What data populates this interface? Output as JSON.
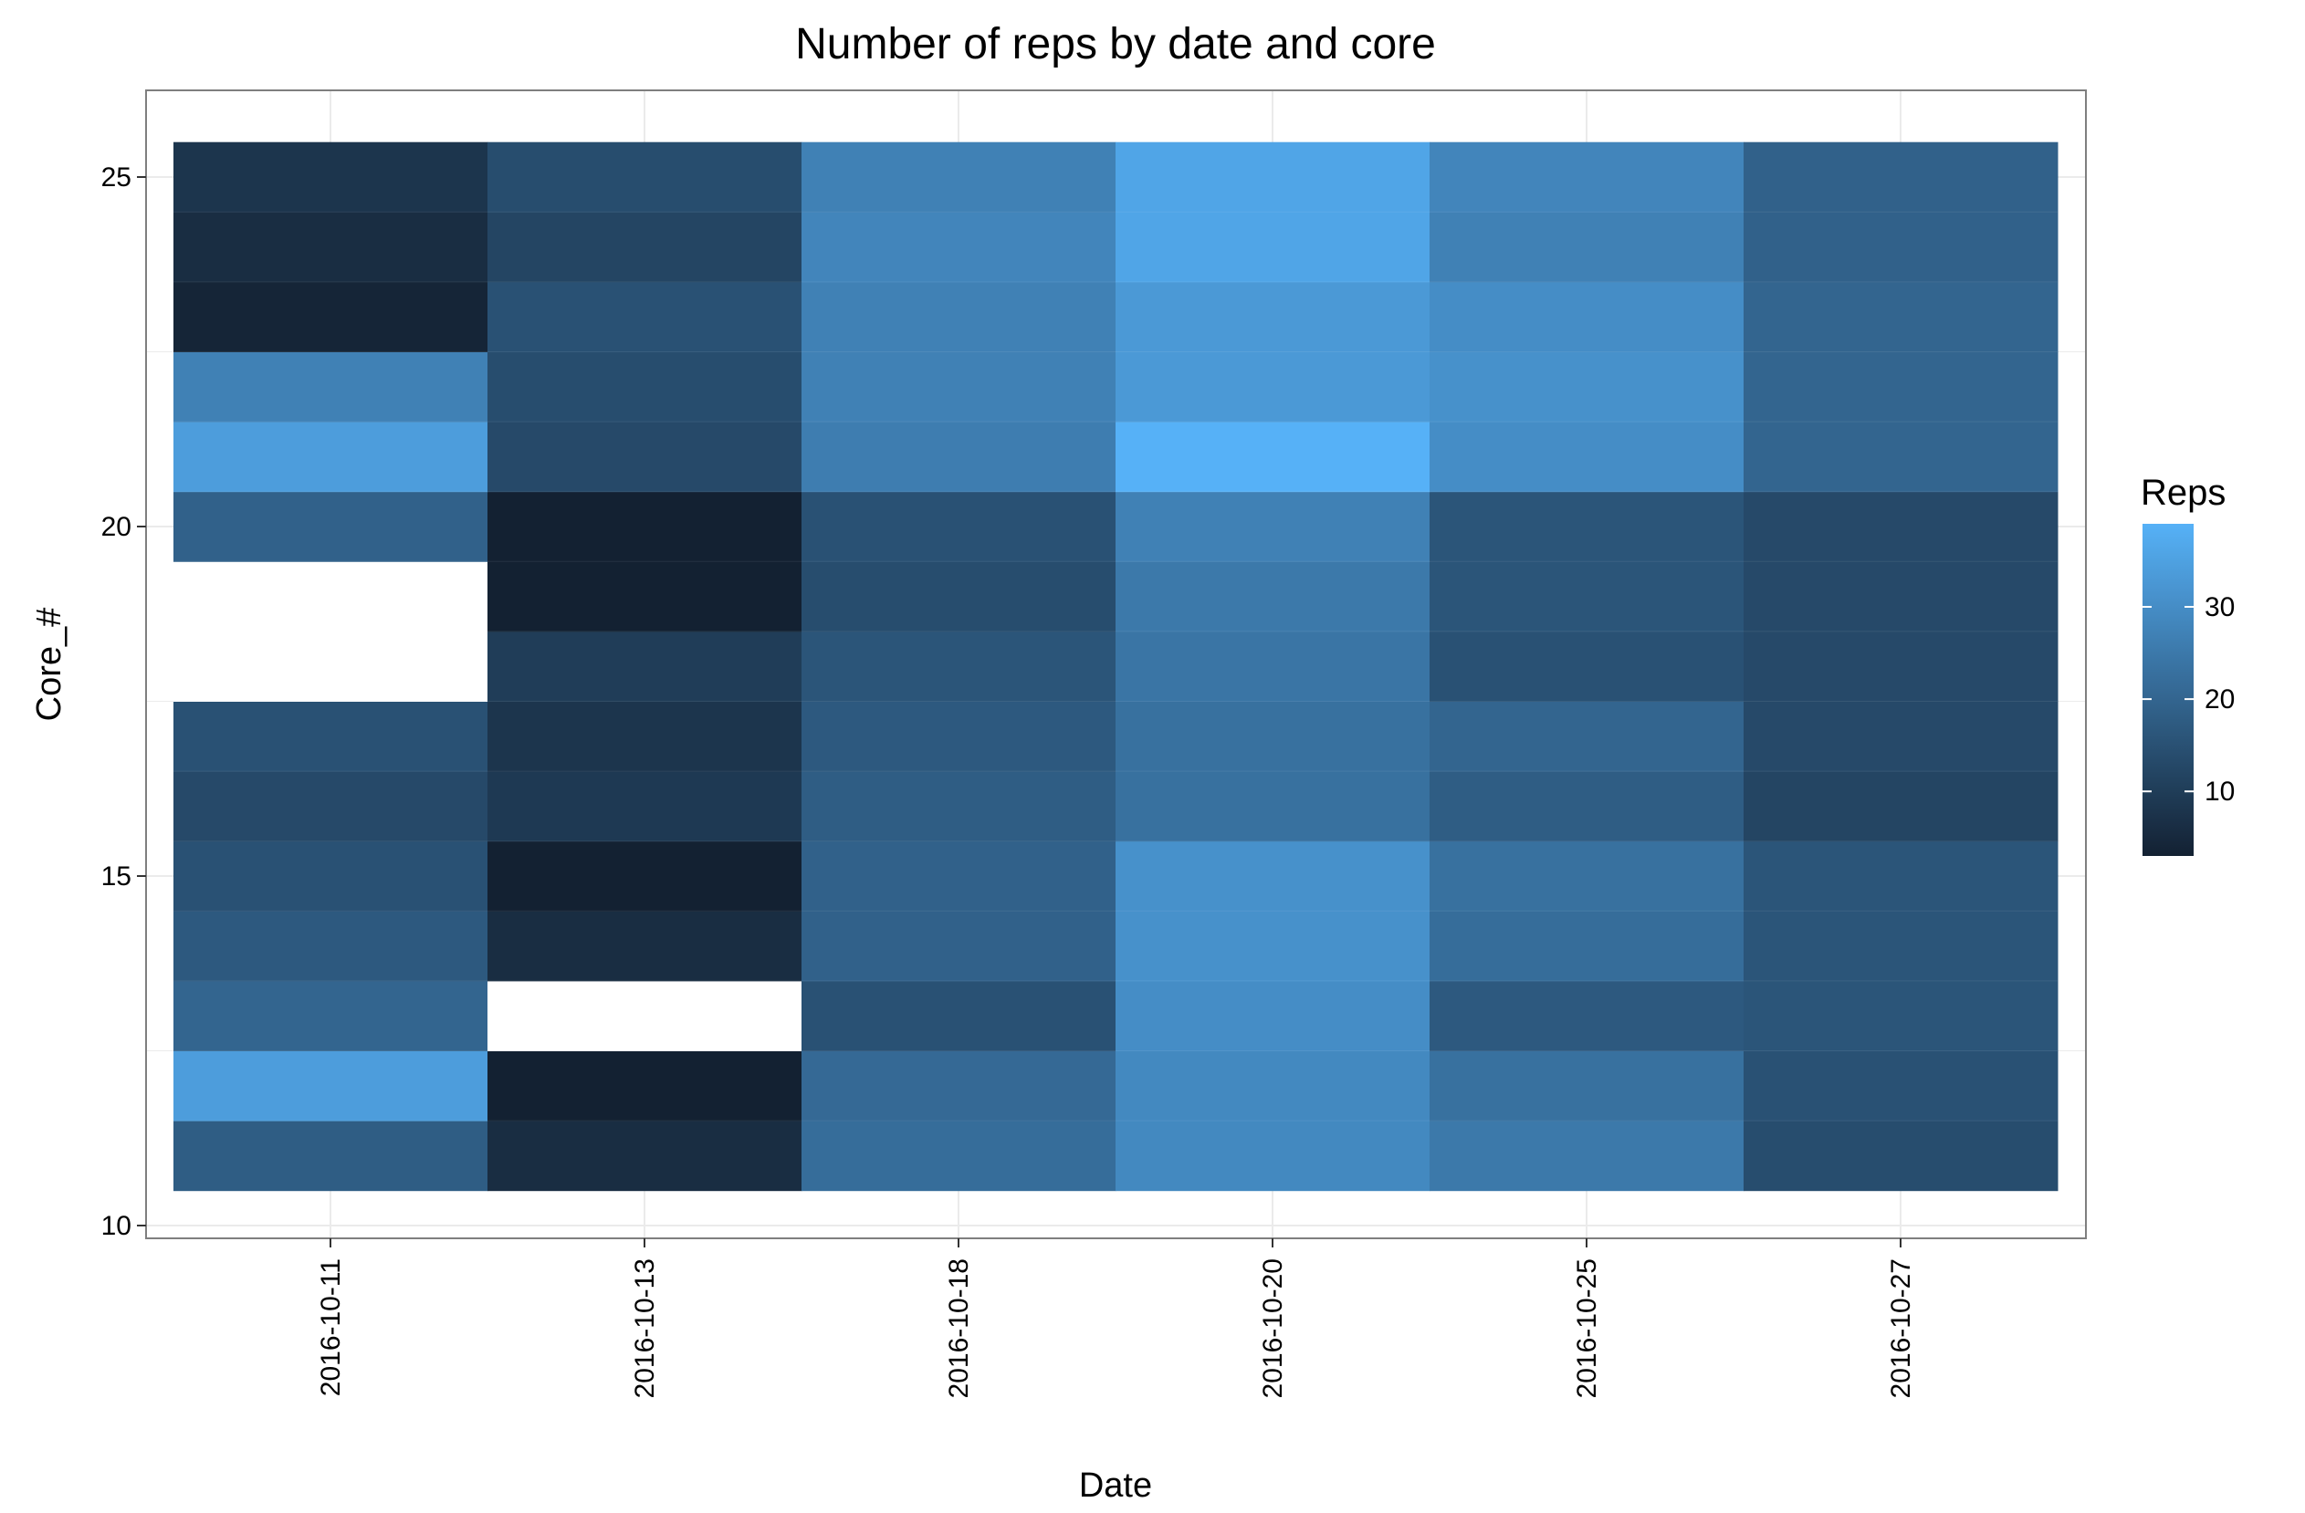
{
  "chart_data": {
    "type": "heatmap",
    "title": "Number of reps by date and core",
    "xlabel": "Date",
    "ylabel": "Core_#",
    "x_categories": [
      "2016-10-11",
      "2016-10-13",
      "2016-10-18",
      "2016-10-20",
      "2016-10-25",
      "2016-10-27"
    ],
    "y_values": [
      11,
      12,
      13,
      14,
      15,
      16,
      17,
      18,
      19,
      20,
      21,
      22,
      23,
      24,
      25
    ],
    "y_ticks": [
      10,
      15,
      20,
      25
    ],
    "ylim": [
      10,
      25
    ],
    "values": [
      [
        18,
        6,
        22,
        29,
        25,
        14
      ],
      [
        34,
        3,
        21,
        29,
        23,
        15
      ],
      [
        20,
        null,
        15,
        30,
        17,
        16
      ],
      [
        17,
        6,
        19,
        31,
        22,
        16
      ],
      [
        15,
        3,
        19,
        31,
        23,
        16
      ],
      [
        13,
        9,
        18,
        23,
        18,
        12
      ],
      [
        15,
        8,
        17,
        23,
        20,
        13
      ],
      [
        null,
        10,
        16,
        24,
        15,
        13
      ],
      [
        null,
        3,
        14,
        25,
        16,
        13
      ],
      [
        19,
        3,
        15,
        27,
        16,
        13
      ],
      [
        34,
        13,
        26,
        39,
        30,
        20
      ],
      [
        27,
        14,
        27,
        33,
        31,
        20
      ],
      [
        4,
        15,
        27,
        33,
        30,
        20
      ],
      [
        6,
        12,
        28,
        36,
        27,
        19
      ],
      [
        8,
        14,
        27,
        36,
        28,
        19
      ]
    ],
    "grid": true,
    "legend": {
      "title": "Reps",
      "ticks": [
        10,
        20,
        30
      ],
      "range": [
        3,
        39
      ],
      "low_color": "#132132",
      "high_color": "#56B1F7",
      "placement": "right"
    },
    "na_color": "#ffffff"
  }
}
